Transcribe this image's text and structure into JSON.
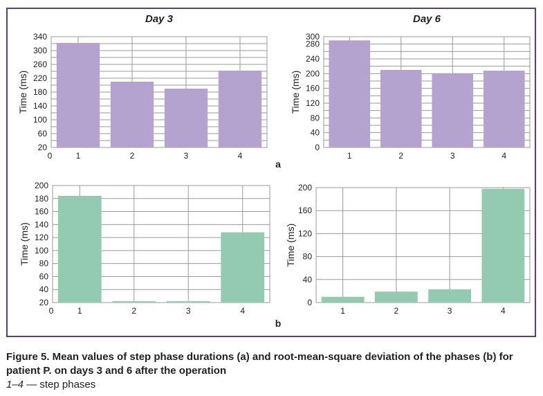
{
  "figure": {
    "caption_title": "Figure 5. Mean values of step phase durations (a) and root-mean-square deviation of the phases (b) for patient P. on days 3 and 6 after the operation",
    "legend_range": "1–4",
    "legend_text": " — step phases",
    "panel_a_label": "a",
    "panel_b_label": "b"
  },
  "colors": {
    "frame": "#5b3f7a",
    "purple_bar": "#b5a3cf",
    "green_bar": "#92cbb1",
    "grid": "#9a9a9a"
  },
  "chart_data": [
    {
      "id": "a-day3",
      "type": "bar",
      "title": "Day 3",
      "ylabel": "Time (ms)",
      "categories": [
        "1",
        "2",
        "3",
        "4"
      ],
      "values": [
        322,
        210,
        190,
        242
      ],
      "ylim": [
        20,
        340
      ],
      "yticks": [
        20,
        40,
        60,
        80,
        100,
        120,
        140,
        160,
        180,
        200,
        220,
        240,
        260,
        280,
        300,
        320,
        340
      ],
      "ytick_labels": [
        "20",
        "",
        "60",
        "",
        "100",
        "",
        "140",
        "",
        "180",
        "",
        "220",
        "",
        "260",
        "",
        "300",
        "",
        "340"
      ],
      "extra_x_tick": "0",
      "color": "#b5a3cf",
      "grid": true
    },
    {
      "id": "a-day6",
      "type": "bar",
      "title": "Day 6",
      "ylabel": "Time (ms)",
      "categories": [
        "1",
        "2",
        "3",
        "4"
      ],
      "values": [
        290,
        210,
        200,
        208
      ],
      "ylim": [
        0,
        300
      ],
      "yticks": [
        0,
        20,
        40,
        60,
        80,
        100,
        120,
        140,
        160,
        180,
        200,
        220,
        240,
        260,
        280,
        300
      ],
      "ytick_labels": [
        "0",
        "",
        "40",
        "",
        "80",
        "",
        "120",
        "",
        "160",
        "",
        "200",
        "",
        "240",
        "",
        "280",
        "300"
      ],
      "extra_x_tick": "",
      "color": "#b5a3cf",
      "grid": true
    },
    {
      "id": "b-day3",
      "type": "bar",
      "title": "",
      "ylabel": "Time (ms)",
      "categories": [
        "1",
        "2",
        "3",
        "4"
      ],
      "values": [
        184,
        22,
        22,
        128
      ],
      "ylim": [
        20,
        200
      ],
      "yticks": [
        20,
        40,
        60,
        80,
        100,
        120,
        140,
        160,
        180,
        200
      ],
      "ytick_labels": [
        "20",
        "40",
        "60",
        "80",
        "100",
        "120",
        "140",
        "160",
        "180",
        "200"
      ],
      "extra_x_tick": "0",
      "color": "#92cbb1",
      "grid": true
    },
    {
      "id": "b-day6",
      "type": "bar",
      "title": "",
      "ylabel": "Time (ms)",
      "categories": [
        "1",
        "2",
        "3",
        "4"
      ],
      "values": [
        10,
        19,
        23,
        198
      ],
      "ylim": [
        0,
        200
      ],
      "yticks": [
        0,
        40,
        80,
        120,
        160,
        200
      ],
      "ytick_labels": [
        "0",
        "40",
        "80",
        "120",
        "160",
        "200"
      ],
      "extra_x_tick": "",
      "color": "#92cbb1",
      "grid": true
    }
  ]
}
